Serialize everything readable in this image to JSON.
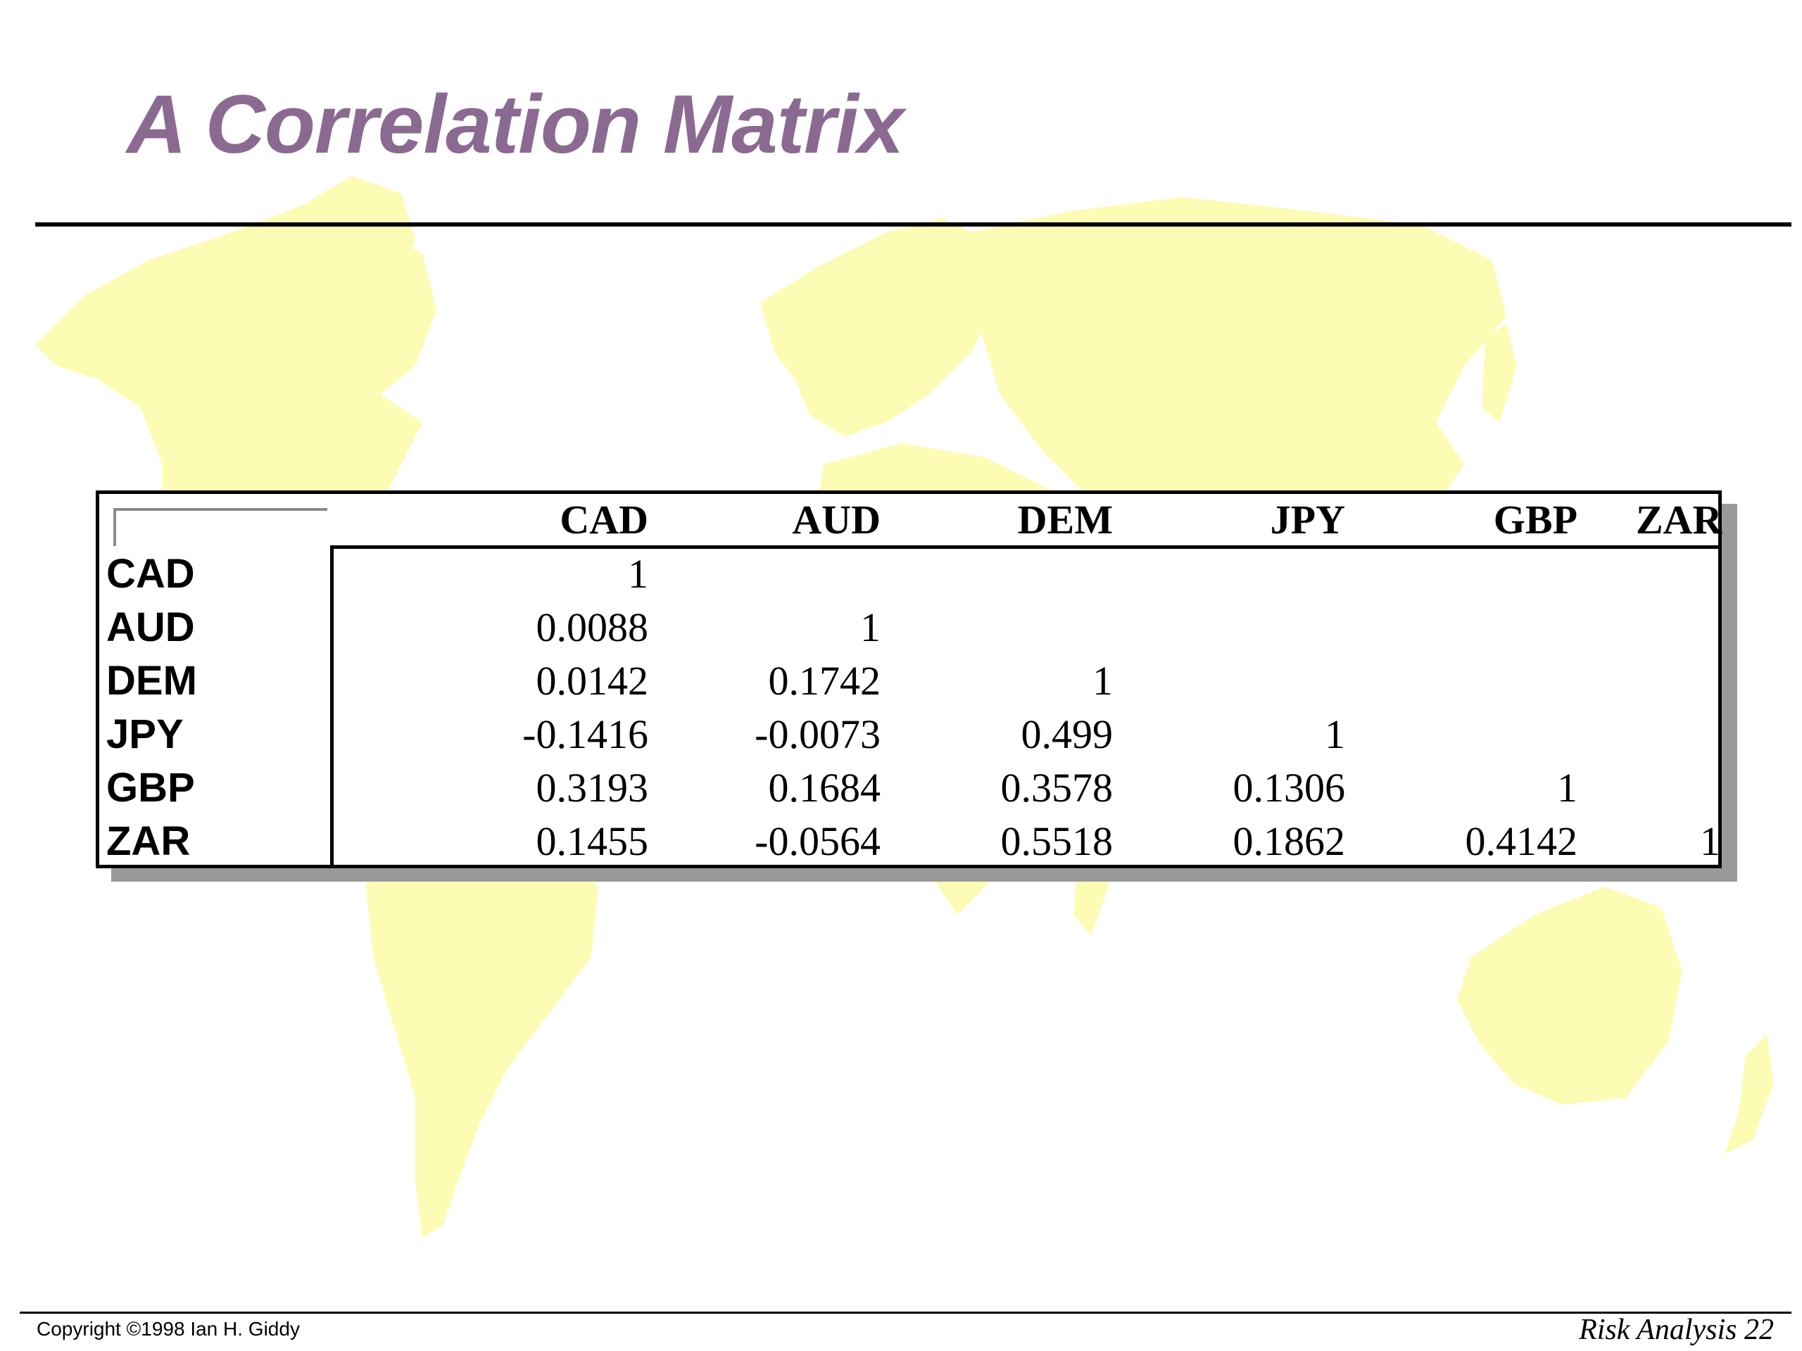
{
  "slide": {
    "title": "A Correlation Matrix",
    "accent_color": "#8b6a91",
    "background_map_color": "#fdfcb5",
    "background_image": "world-map-icon"
  },
  "matrix": {
    "columns": [
      "CAD",
      "AUD",
      "DEM",
      "JPY",
      "GBP",
      "ZAR"
    ],
    "rows": [
      {
        "label": "CAD",
        "values": [
          "1",
          "",
          "",
          "",
          "",
          ""
        ]
      },
      {
        "label": "AUD",
        "values": [
          "0.0088",
          "1",
          "",
          "",
          "",
          ""
        ]
      },
      {
        "label": "DEM",
        "values": [
          "0.0142",
          "0.1742",
          "1",
          "",
          "",
          ""
        ]
      },
      {
        "label": "JPY",
        "values": [
          "-0.1416",
          "-0.0073",
          "0.499",
          "1",
          "",
          ""
        ]
      },
      {
        "label": "GBP",
        "values": [
          "0.3193",
          "0.1684",
          "0.3578",
          "0.1306",
          "1",
          ""
        ]
      },
      {
        "label": "ZAR",
        "values": [
          "0.1455",
          "-0.0564",
          "0.5518",
          "0.1862",
          "0.4142",
          "1"
        ]
      }
    ]
  },
  "footer": {
    "copyright": "Copyright ©1998 Ian H. Giddy",
    "page_label": "Risk Analysis 22"
  }
}
